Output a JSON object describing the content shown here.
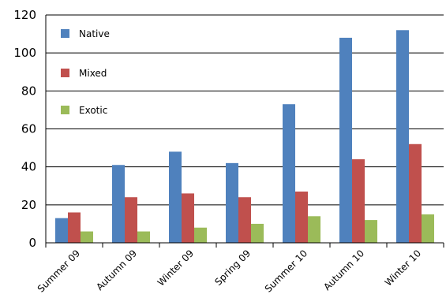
{
  "chart_data": {
    "type": "bar",
    "categories": [
      "Summer 09",
      "Autumn 09",
      "Winter 09",
      "Spring 09",
      "Summer 10",
      "Autumn 10",
      "Winter 10"
    ],
    "series": [
      {
        "name": "Native",
        "color": "#4f81bd",
        "values": [
          13,
          41,
          48,
          42,
          73,
          108,
          112
        ]
      },
      {
        "name": "Mixed",
        "color": "#c0504d",
        "values": [
          16,
          24,
          26,
          24,
          27,
          44,
          52
        ]
      },
      {
        "name": "Exotic",
        "color": "#9bbb59",
        "values": [
          6,
          6,
          8,
          10,
          14,
          12,
          15
        ]
      }
    ],
    "ylim": [
      0,
      120
    ],
    "yticks": [
      "0",
      "20",
      "40",
      "60",
      "80",
      "100",
      "120"
    ],
    "grid": true,
    "legend_position": "top-left"
  }
}
